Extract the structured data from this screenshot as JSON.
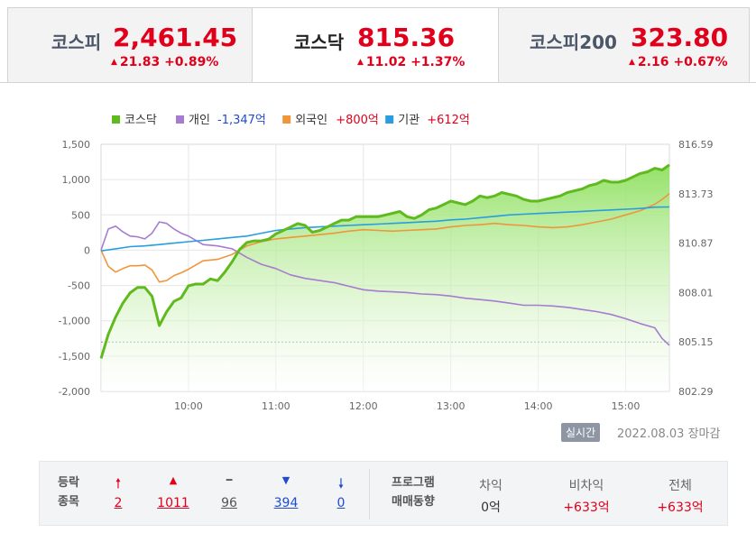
{
  "tabs": [
    {
      "name": "코스피",
      "value": "2,461.45",
      "change": "21.83 +0.89%"
    },
    {
      "name": "코스닥",
      "value": "815.36",
      "change": "11.02 +1.37%"
    },
    {
      "name": "코스피200",
      "value": "323.80",
      "change": "2.16 +0.67%"
    }
  ],
  "colors": {
    "up": "#e0001b",
    "down": "#1f4bd1",
    "kosdaq": "#5fba1d",
    "individual": "#a77bd1",
    "foreign": "#f0963a",
    "institution": "#2a9de0"
  },
  "legend": [
    {
      "label": "코스닥",
      "value": "",
      "color": "#5fba1d"
    },
    {
      "label": "개인",
      "value": "-1,347억",
      "color": "#a77bd1",
      "value_color": "#1f4bd1"
    },
    {
      "label": "외국인",
      "value": "+800억",
      "color": "#f0963a",
      "value_color": "#e0001b"
    },
    {
      "label": "기관",
      "value": "+612억",
      "color": "#2a9de0",
      "value_color": "#e0001b"
    }
  ],
  "chart_data": {
    "type": "line",
    "x_ticks": [
      "10:00",
      "11:00",
      "12:00",
      "13:00",
      "14:00",
      "15:00"
    ],
    "y_left_ticks": [
      "1,500",
      "1,000",
      "500",
      "0",
      "-500",
      "-1,000",
      "-1,500",
      "-2,000"
    ],
    "y_left_range": [
      -2000,
      1500
    ],
    "y_right_ticks": [
      "816.59",
      "813.73",
      "810.87",
      "808.01",
      "805.15",
      "802.29"
    ],
    "y_right_range": [
      802.29,
      816.59
    ],
    "x_range": [
      "09:00",
      "15:30"
    ],
    "reference_level": 805.15,
    "series": [
      {
        "name": "코스닥",
        "axis": "right",
        "x": [
          "09:00",
          "09:05",
          "09:10",
          "09:15",
          "09:20",
          "09:25",
          "09:30",
          "09:35",
          "09:40",
          "09:45",
          "09:50",
          "09:55",
          "10:00",
          "10:05",
          "10:10",
          "10:15",
          "10:20",
          "10:25",
          "10:30",
          "10:35",
          "10:40",
          "10:45",
          "10:50",
          "10:55",
          "11:00",
          "11:05",
          "11:10",
          "11:15",
          "11:20",
          "11:25",
          "11:30",
          "11:35",
          "11:40",
          "11:45",
          "11:50",
          "11:55",
          "12:00",
          "12:05",
          "12:10",
          "12:15",
          "12:20",
          "12:25",
          "12:30",
          "12:35",
          "12:40",
          "12:45",
          "12:50",
          "12:55",
          "13:00",
          "13:05",
          "13:10",
          "13:15",
          "13:20",
          "13:25",
          "13:30",
          "13:35",
          "13:40",
          "13:45",
          "13:50",
          "13:55",
          "14:00",
          "14:05",
          "14:10",
          "14:15",
          "14:20",
          "14:25",
          "14:30",
          "14:35",
          "14:40",
          "14:45",
          "14:50",
          "14:55",
          "15:00",
          "15:05",
          "15:10",
          "15:15",
          "15:20",
          "15:25",
          "15:30"
        ],
        "values": [
          804.2,
          805.6,
          806.6,
          807.4,
          808.0,
          808.3,
          808.3,
          807.8,
          806.1,
          806.9,
          807.5,
          807.7,
          808.4,
          808.5,
          808.5,
          808.8,
          808.7,
          809.2,
          809.8,
          810.5,
          810.9,
          811.0,
          811.0,
          811.1,
          811.4,
          811.6,
          811.8,
          812.0,
          811.9,
          811.5,
          811.6,
          811.8,
          812.0,
          812.2,
          812.2,
          812.4,
          812.4,
          812.4,
          812.4,
          812.5,
          812.6,
          812.7,
          812.4,
          812.3,
          812.5,
          812.8,
          812.9,
          813.1,
          813.3,
          813.2,
          813.1,
          813.3,
          813.6,
          813.5,
          813.6,
          813.8,
          813.7,
          813.6,
          813.4,
          813.3,
          813.3,
          813.4,
          813.5,
          813.6,
          813.8,
          813.9,
          814.0,
          814.2,
          814.3,
          814.5,
          814.4,
          814.4,
          814.5,
          814.7,
          814.9,
          815.0,
          815.2,
          815.1,
          815.4
        ]
      },
      {
        "name": "개인",
        "axis": "left",
        "x": [
          "09:00",
          "09:05",
          "09:10",
          "09:15",
          "09:20",
          "09:25",
          "09:30",
          "09:35",
          "09:40",
          "09:45",
          "09:50",
          "09:55",
          "10:00",
          "10:10",
          "10:20",
          "10:30",
          "10:40",
          "10:50",
          "11:00",
          "11:10",
          "11:20",
          "11:30",
          "11:40",
          "11:50",
          "12:00",
          "12:10",
          "12:20",
          "12:30",
          "12:40",
          "12:50",
          "13:00",
          "13:10",
          "13:20",
          "13:30",
          "13:40",
          "13:50",
          "14:00",
          "14:10",
          "14:20",
          "14:30",
          "14:40",
          "14:50",
          "15:00",
          "15:10",
          "15:20",
          "15:25",
          "15:30"
        ],
        "values": [
          0,
          300,
          340,
          260,
          200,
          190,
          160,
          240,
          400,
          380,
          300,
          240,
          200,
          80,
          60,
          20,
          -100,
          -200,
          -260,
          -350,
          -400,
          -430,
          -460,
          -510,
          -560,
          -580,
          -590,
          -600,
          -620,
          -630,
          -650,
          -680,
          -700,
          -720,
          -750,
          -780,
          -780,
          -790,
          -810,
          -840,
          -870,
          -910,
          -970,
          -1040,
          -1100,
          -1250,
          -1347
        ]
      },
      {
        "name": "외국인",
        "axis": "left",
        "x": [
          "09:00",
          "09:05",
          "09:10",
          "09:15",
          "09:20",
          "09:25",
          "09:30",
          "09:35",
          "09:40",
          "09:45",
          "09:50",
          "09:55",
          "10:00",
          "10:10",
          "10:20",
          "10:30",
          "10:40",
          "10:50",
          "11:00",
          "11:10",
          "11:20",
          "11:30",
          "11:40",
          "11:50",
          "12:00",
          "12:10",
          "12:20",
          "12:30",
          "12:40",
          "12:50",
          "13:00",
          "13:10",
          "13:20",
          "13:30",
          "13:40",
          "13:50",
          "14:00",
          "14:10",
          "14:20",
          "14:30",
          "14:40",
          "14:50",
          "15:00",
          "15:10",
          "15:20",
          "15:25",
          "15:30"
        ],
        "values": [
          0,
          -230,
          -310,
          -260,
          -220,
          -220,
          -210,
          -280,
          -450,
          -430,
          -360,
          -320,
          -270,
          -150,
          -130,
          -60,
          60,
          120,
          160,
          180,
          200,
          220,
          240,
          270,
          290,
          280,
          270,
          280,
          290,
          300,
          330,
          350,
          360,
          380,
          360,
          350,
          330,
          320,
          330,
          360,
          400,
          440,
          500,
          560,
          650,
          720,
          800
        ]
      },
      {
        "name": "기관",
        "axis": "left",
        "x": [
          "09:00",
          "09:10",
          "09:20",
          "09:30",
          "09:40",
          "09:50",
          "10:00",
          "10:10",
          "10:20",
          "10:30",
          "10:40",
          "10:50",
          "11:00",
          "11:10",
          "11:20",
          "11:30",
          "11:40",
          "11:50",
          "12:00",
          "12:10",
          "12:20",
          "12:30",
          "12:40",
          "12:50",
          "13:00",
          "13:10",
          "13:20",
          "13:30",
          "13:40",
          "13:50",
          "14:00",
          "14:10",
          "14:20",
          "14:30",
          "14:40",
          "14:50",
          "15:00",
          "15:10",
          "15:20",
          "15:30"
        ],
        "values": [
          -10,
          20,
          50,
          60,
          80,
          100,
          120,
          140,
          160,
          180,
          200,
          240,
          280,
          300,
          320,
          330,
          340,
          350,
          360,
          370,
          380,
          390,
          400,
          410,
          430,
          440,
          460,
          480,
          500,
          510,
          520,
          530,
          540,
          550,
          560,
          570,
          580,
          590,
          610,
          612
        ]
      }
    ]
  },
  "footer": {
    "realtime_label": "실시간",
    "date_status": "2022.08.03 장마감"
  },
  "stats": {
    "label_line1": "등락",
    "label_line2": "종목",
    "items": [
      {
        "icon": "🠕",
        "value": "2",
        "icon_name": "upper-limit-icon",
        "color": "#e0001b"
      },
      {
        "icon": "▲",
        "value": "1011",
        "icon_name": "rise-icon",
        "color": "#e0001b"
      },
      {
        "icon": "━",
        "value": "96",
        "icon_name": "unchanged-icon",
        "color": "#555555"
      },
      {
        "icon": "▼",
        "value": "394",
        "icon_name": "fall-icon",
        "color": "#1f4bd1"
      },
      {
        "icon": "🠗",
        "value": "0",
        "icon_name": "lower-limit-icon",
        "color": "#1f4bd1"
      }
    ],
    "program_line1": "프로그램",
    "program_line2": "매매동향",
    "program": [
      {
        "label": "차익",
        "value": "0억",
        "color": "#333333"
      },
      {
        "label": "비차익",
        "value": "+633억",
        "color": "#e0001b"
      },
      {
        "label": "전체",
        "value": "+633억",
        "color": "#e0001b"
      }
    ]
  }
}
